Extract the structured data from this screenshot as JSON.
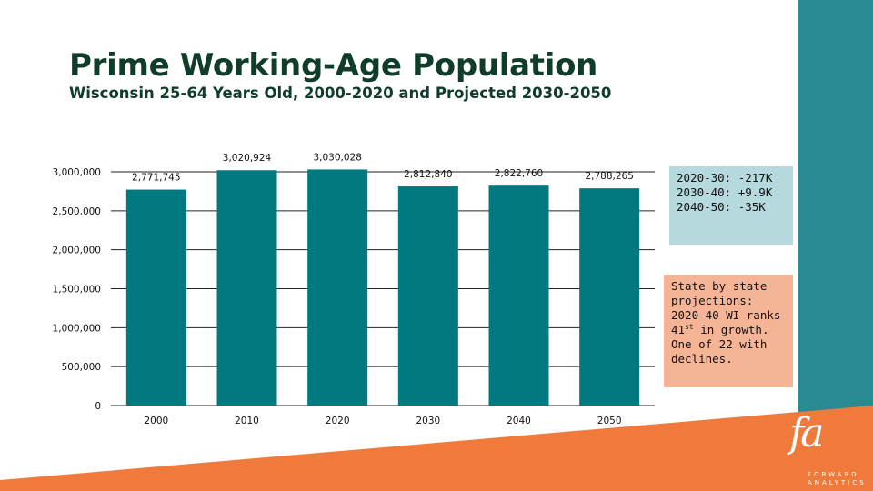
{
  "title": "Prime Working-Age Population",
  "subtitle": "Wisconsin 25-64 Years Old, 2000-2020 and Projected 2030-2050",
  "colors": {
    "bar": "#007a80",
    "accent_teal": "#2a8a92",
    "accent_orange": "#ef7a3c",
    "title": "#0f3d2a"
  },
  "chart_data": {
    "type": "bar",
    "title": "",
    "categories": [
      "2000",
      "2010",
      "2020",
      "2030",
      "2040",
      "2050"
    ],
    "values": [
      2771745,
      3020924,
      3030028,
      2812840,
      2822760,
      2788265
    ],
    "value_labels": [
      "2,771,745",
      "3,020,924",
      "3,030,028",
      "2,812,840",
      "2,822,760",
      "2,788,265"
    ],
    "ylim": [
      0,
      3000000
    ],
    "yticks": [
      0,
      500000,
      1000000,
      1500000,
      2000000,
      2500000,
      3000000
    ],
    "ytick_labels": [
      "0",
      "500,000",
      "1,000,000",
      "1,500,000",
      "2,000,000",
      "2,500,000",
      "3,000,000"
    ],
    "xlabel": "",
    "ylabel": "",
    "grid": true
  },
  "callouts": {
    "change": [
      "2020-30: -217K",
      "2030-40: +9.9K",
      "2040-50: -35K"
    ],
    "ranking": {
      "line1": "State by state",
      "line2": "projections:",
      "line3": "2020-40 WI ranks",
      "rank_num": "41",
      "rank_suffix": "st",
      "rank_rest": " in growth.",
      "line5": "One of 22 with",
      "line6": "declines."
    }
  },
  "logo": {
    "mark": "fa",
    "line1": "FORWARD",
    "line2": "ANALYTICS"
  }
}
